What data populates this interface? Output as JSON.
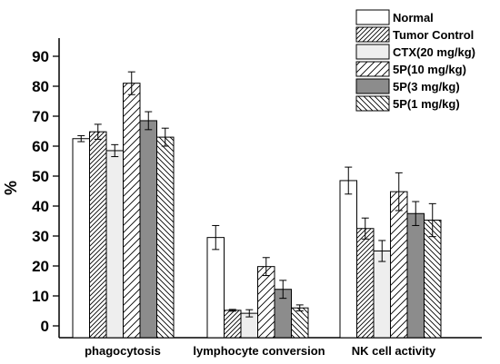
{
  "chart_data": {
    "type": "bar",
    "ylabel": "%",
    "xlabel": "",
    "ylim": [
      -4,
      96
    ],
    "yticks": [
      0,
      10,
      20,
      30,
      40,
      50,
      60,
      70,
      80,
      90
    ],
    "ytick_labels": [
      "0",
      "10",
      "20",
      "30",
      "40",
      "50",
      "60",
      "70",
      "80",
      "90"
    ],
    "grid": false,
    "legend_position": "top-right",
    "categories": [
      "phagocytosis",
      "lymphocyte conversion",
      "NK cell activity"
    ],
    "series": [
      {
        "name": "Normal",
        "pattern": "white",
        "values": [
          62.5,
          29.5,
          48.5
        ],
        "errors": [
          1.0,
          4.0,
          4.5
        ]
      },
      {
        "name": "Tumor Control",
        "pattern": "hatch-dense",
        "values": [
          64.8,
          5.2,
          32.5
        ],
        "errors": [
          2.5,
          0.3,
          3.5
        ]
      },
      {
        "name": "CTX(20 mg/kg)",
        "pattern": "light-gray",
        "values": [
          58.5,
          4.2,
          25.0
        ],
        "errors": [
          2.0,
          1.2,
          3.5
        ]
      },
      {
        "name": "5P(10 mg/kg)",
        "pattern": "hatch-sparse",
        "values": [
          81.0,
          19.8,
          44.8
        ],
        "errors": [
          3.8,
          3.0,
          6.3
        ]
      },
      {
        "name": "5P(3 mg/kg)",
        "pattern": "dark-gray",
        "values": [
          68.5,
          12.2,
          37.5
        ],
        "errors": [
          3.0,
          3.0,
          4.0
        ]
      },
      {
        "name": "5P(1 mg/kg)",
        "pattern": "hatch-back",
        "values": [
          63.0,
          6.0,
          35.3
        ],
        "errors": [
          3.0,
          1.0,
          5.5
        ]
      }
    ]
  }
}
